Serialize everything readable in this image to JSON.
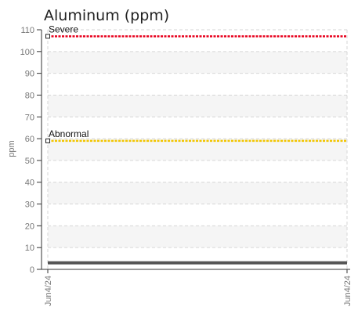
{
  "chart_data": {
    "type": "line",
    "title": "Aluminum (ppm)",
    "ylabel": "ppm",
    "xlabel": "",
    "ylim": [
      0,
      110
    ],
    "yticks": [
      0,
      10,
      20,
      30,
      40,
      50,
      60,
      70,
      80,
      90,
      100,
      110
    ],
    "x_tick_labels": [
      "Jun4/24",
      "Jun4/24"
    ],
    "grid": true,
    "thresholds": [
      {
        "name": "Severe",
        "value": 107,
        "color": "#e8001c"
      },
      {
        "name": "Abnormal",
        "value": 59,
        "color": "#f2c500"
      }
    ],
    "series": [
      {
        "values": [
          3,
          3
        ],
        "color": "#555555"
      }
    ]
  }
}
